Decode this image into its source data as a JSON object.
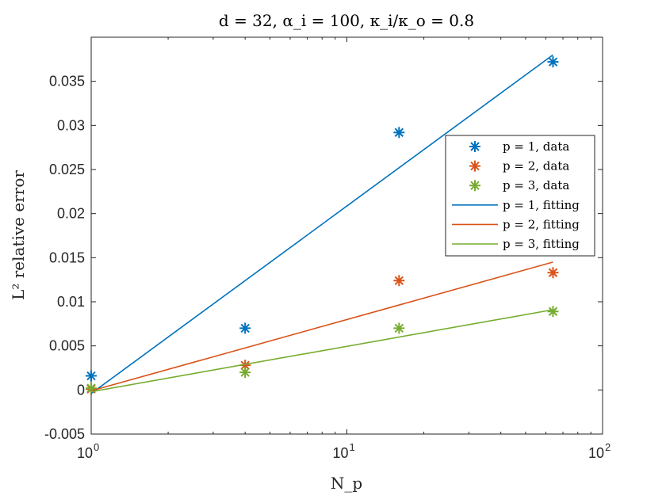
{
  "chart_data": {
    "type": "scatter",
    "title": "d = 32, α_i = 100, κ_i/κ_o = 0.8",
    "xlabel": "N_p",
    "ylabel": "L² relative error",
    "xscale": "log",
    "xlim": [
      1,
      100
    ],
    "ylim": [
      -0.005,
      0.04
    ],
    "x_ticks": [
      {
        "value": 1,
        "base": "10",
        "exp": "0"
      },
      {
        "value": 10,
        "base": "10",
        "exp": "1"
      },
      {
        "value": 100,
        "base": "10",
        "exp": "2"
      }
    ],
    "y_ticks": [
      {
        "value": -0.005,
        "label": "-0.005"
      },
      {
        "value": 0,
        "label": "0"
      },
      {
        "value": 0.005,
        "label": "0.005"
      },
      {
        "value": 0.01,
        "label": "0.01"
      },
      {
        "value": 0.015,
        "label": "0.015"
      },
      {
        "value": 0.02,
        "label": "0.02"
      },
      {
        "value": 0.025,
        "label": "0.025"
      },
      {
        "value": 0.03,
        "label": "0.03"
      },
      {
        "value": 0.035,
        "label": "0.035"
      }
    ],
    "series": [
      {
        "name": "p = 1, data",
        "kind": "markers",
        "color": "#0072BD",
        "x": [
          1,
          4,
          16,
          64
        ],
        "y": [
          0.0016,
          0.007,
          0.0292,
          0.0372
        ]
      },
      {
        "name": "p = 2, data",
        "kind": "markers",
        "color": "#D95319",
        "x": [
          1,
          4,
          16,
          64
        ],
        "y": [
          0.0001,
          0.0028,
          0.0124,
          0.0133
        ]
      },
      {
        "name": "p = 3, data",
        "kind": "markers",
        "color": "#77AC30",
        "x": [
          1,
          4,
          16,
          64
        ],
        "y": [
          0.0002,
          0.002,
          0.007,
          0.0089
        ]
      },
      {
        "name": "p = 1, fitting",
        "kind": "line",
        "color": "#0072BD",
        "x": [
          1,
          64
        ],
        "y": [
          -0.0004,
          0.038
        ]
      },
      {
        "name": "p = 2, fitting",
        "kind": "line",
        "color": "#D95319",
        "x": [
          1,
          64
        ],
        "y": [
          -0.0001,
          0.0145
        ]
      },
      {
        "name": "p = 3, fitting",
        "kind": "line",
        "color": "#77AC30",
        "x": [
          1,
          64
        ],
        "y": [
          -0.0002,
          0.0091
        ]
      }
    ],
    "legend_location": "right"
  }
}
